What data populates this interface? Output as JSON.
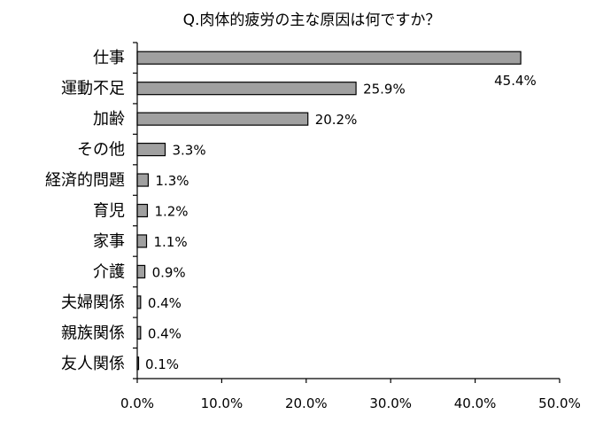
{
  "chart_data": {
    "type": "bar",
    "orientation": "horizontal",
    "title": "Q.肉体的疲労の主な原因は何ですか？",
    "categories": [
      "仕事",
      "運動不足",
      "加齢",
      "その他",
      "経済的問題",
      "育児",
      "家事",
      "介護",
      "夫婦関係",
      "親族関係",
      "友人関係"
    ],
    "values": [
      45.4,
      25.9,
      20.2,
      3.3,
      1.3,
      1.2,
      1.1,
      0.9,
      0.4,
      0.4,
      0.1
    ],
    "value_labels": [
      "45.4%",
      "25.9%",
      "20.2%",
      "3.3%",
      "1.3%",
      "1.2%",
      "1.1%",
      "0.9%",
      "0.4%",
      "0.4%",
      "0.1%"
    ],
    "xlim": [
      0,
      50
    ],
    "xticks": [
      "0.0%",
      "10.0%",
      "20.0%",
      "30.0%",
      "40.0%",
      "50.0%"
    ],
    "xlabel": "",
    "ylabel": "",
    "grid": false,
    "legend": "none",
    "bar_color": "#a0a0a0",
    "bar_edge_color": "#000000"
  }
}
